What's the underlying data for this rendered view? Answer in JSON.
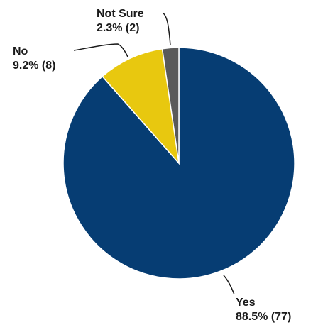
{
  "chart_data": {
    "type": "pie",
    "title": "",
    "slices": [
      {
        "label": "Yes",
        "percent": 88.5,
        "count": 77,
        "value_text": "88.5% (77)",
        "color": "#063D73"
      },
      {
        "label": "No",
        "percent": 9.2,
        "count": 8,
        "value_text": "9.2% (8)",
        "color": "#E8C80F"
      },
      {
        "label": "Not Sure",
        "percent": 2.3,
        "count": 2,
        "value_text": "2.3% (2)",
        "color": "#5A5A5A"
      }
    ],
    "slice_order": "clockwise from top: Yes, No, Not Sure",
    "legend": "none (labels with leader lines)"
  }
}
